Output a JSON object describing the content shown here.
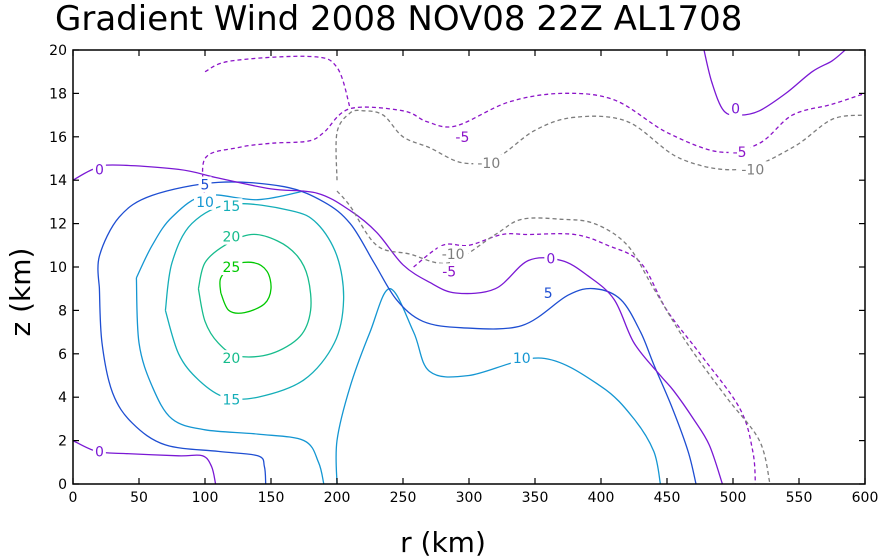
{
  "chart_data": {
    "type": "contour",
    "title": "Gradient Wind 2008 NOV08 22Z  AL1708",
    "xlabel": "r (km)",
    "ylabel": "z (km)",
    "xlim": [
      0,
      600
    ],
    "ylim": [
      0,
      20
    ],
    "x_ticks": [
      "0",
      "50",
      "100",
      "150",
      "200",
      "250",
      "300",
      "350",
      "400",
      "450",
      "500",
      "550",
      "600"
    ],
    "y_ticks": [
      "0",
      "2",
      "4",
      "6",
      "8",
      "10",
      "12",
      "14",
      "16",
      "18",
      "20"
    ],
    "contours": [
      {
        "level": "25",
        "color": "#00c800",
        "dashed": false,
        "points": [
          [
            112,
            8.8
          ],
          [
            118,
            8.0
          ],
          [
            130,
            7.9
          ],
          [
            145,
            8.3
          ],
          [
            150,
            9.0
          ],
          [
            147,
            9.8
          ],
          [
            137,
            10.2
          ],
          [
            122,
            10.1
          ],
          [
            112,
            9.5
          ],
          [
            112,
            8.8
          ]
        ],
        "labels": [
          [
            120,
            10.0
          ]
        ]
      },
      {
        "level": "20",
        "color": "#16bc8c",
        "dashed": false,
        "points": [
          [
            95,
            9.0
          ],
          [
            100,
            7.5
          ],
          [
            110,
            6.5
          ],
          [
            125,
            5.9
          ],
          [
            150,
            6.0
          ],
          [
            172,
            6.8
          ],
          [
            180,
            8.0
          ],
          [
            178,
            9.5
          ],
          [
            170,
            10.5
          ],
          [
            155,
            11.2
          ],
          [
            135,
            11.5
          ],
          [
            115,
            11.0
          ],
          [
            100,
            10.2
          ],
          [
            95,
            9.0
          ]
        ],
        "labels": [
          [
            120,
            11.4
          ],
          [
            120,
            5.8
          ]
        ]
      },
      {
        "level": "15",
        "color": "#14aeb8",
        "dashed": false,
        "points": [
          [
            70,
            8.0
          ],
          [
            80,
            6.0
          ],
          [
            95,
            4.8
          ],
          [
            115,
            4.0
          ],
          [
            140,
            4.0
          ],
          [
            175,
            4.8
          ],
          [
            198,
            6.5
          ],
          [
            205,
            8.5
          ],
          [
            200,
            10.5
          ],
          [
            185,
            12.0
          ],
          [
            165,
            12.6
          ],
          [
            120,
            12.9
          ],
          [
            90,
            12.0
          ],
          [
            75,
            10.2
          ],
          [
            70,
            8.0
          ]
        ],
        "labels": [
          [
            120,
            12.8
          ],
          [
            120,
            3.9
          ]
        ]
      },
      {
        "level": "10",
        "color": "#1496d2",
        "dashed": false,
        "points": [
          [
            48,
            9.5
          ],
          [
            50,
            6.5
          ],
          [
            60,
            4.5
          ],
          [
            75,
            3.0
          ],
          [
            100,
            2.5
          ],
          [
            140,
            2.3
          ],
          [
            175,
            2.0
          ],
          [
            186,
            1.0
          ],
          [
            190,
            0
          ],
          [
            null,
            null
          ],
          [
            200,
            0
          ],
          [
            200,
            2.0
          ],
          [
            210,
            4.5
          ],
          [
            225,
            7.0
          ],
          [
            240,
            9.0
          ],
          [
            258,
            7.0
          ],
          [
            270,
            5.2
          ],
          [
            300,
            5.0
          ],
          [
            355,
            5.8
          ],
          [
            400,
            4.5
          ],
          [
            425,
            3.0
          ],
          [
            440,
            1.5
          ],
          [
            445,
            0
          ],
          [
            null,
            null
          ],
          [
            175,
            13.5
          ],
          [
            140,
            13.1
          ],
          [
            100,
            13.3
          ],
          [
            75,
            12.3
          ],
          [
            60,
            11.0
          ],
          [
            48,
            9.5
          ]
        ],
        "labels": [
          [
            100,
            13.0
          ],
          [
            340,
            5.8
          ]
        ]
      },
      {
        "level": "5",
        "color": "#1e4ed2",
        "dashed": false,
        "points": [
          [
            20,
            9.0
          ],
          [
            22,
            6.5
          ],
          [
            30,
            4.2
          ],
          [
            45,
            2.8
          ],
          [
            70,
            1.8
          ],
          [
            110,
            1.5
          ],
          [
            140,
            1.3
          ],
          [
            145,
            0.8
          ],
          [
            146,
            0
          ],
          [
            null,
            null
          ],
          [
            472,
            0
          ],
          [
            466,
            1.5
          ],
          [
            454,
            3.5
          ],
          [
            440,
            5.5
          ],
          [
            430,
            7.0
          ],
          [
            415,
            8.5
          ],
          [
            395,
            9.0
          ],
          [
            375,
            8.7
          ],
          [
            340,
            7.3
          ],
          [
            295,
            7.2
          ],
          [
            265,
            7.5
          ],
          [
            245,
            8.5
          ],
          [
            228,
            10.2
          ],
          [
            210,
            12.0
          ],
          [
            190,
            13.0
          ],
          [
            160,
            13.7
          ],
          [
            110,
            13.9
          ],
          [
            60,
            13.3
          ],
          [
            35,
            12.3
          ],
          [
            20,
            10.5
          ],
          [
            20,
            9.0
          ]
        ],
        "labels": [
          [
            100,
            13.8
          ],
          [
            360,
            8.8
          ]
        ]
      },
      {
        "level": "0",
        "color": "#7a18d4",
        "dashed": false,
        "points": [
          [
            0,
            14.0
          ],
          [
            15,
            14.5
          ],
          [
            30,
            14.7
          ],
          [
            80,
            14.5
          ],
          [
            110,
            14.1
          ],
          [
            150,
            13.6
          ],
          [
            185,
            13.4
          ],
          [
            210,
            12.6
          ],
          [
            230,
            11.6
          ],
          [
            250,
            10.1
          ],
          [
            270,
            9.3
          ],
          [
            290,
            8.8
          ],
          [
            320,
            9.0
          ],
          [
            345,
            10.3
          ],
          [
            370,
            10.3
          ],
          [
            390,
            9.6
          ],
          [
            410,
            8.5
          ],
          [
            425,
            6.5
          ],
          [
            445,
            5.0
          ],
          [
            455,
            4.3
          ],
          [
            470,
            3.0
          ],
          [
            482,
            1.8
          ],
          [
            492,
            0
          ],
          [
            null,
            null
          ],
          [
            0,
            2.0
          ],
          [
            18,
            1.5
          ],
          [
            40,
            1.4
          ],
          [
            80,
            1.3
          ],
          [
            98,
            1.3
          ],
          [
            105,
            0.8
          ],
          [
            108,
            0
          ],
          [
            null,
            null
          ],
          [
            478,
            20
          ],
          [
            484,
            18.5
          ],
          [
            493,
            17.2
          ],
          [
            505,
            17.0
          ],
          [
            520,
            17.2
          ],
          [
            540,
            18.0
          ],
          [
            560,
            19.0
          ],
          [
            575,
            19.5
          ],
          [
            585,
            20
          ]
        ],
        "labels": [
          [
            20,
            14.5
          ],
          [
            20,
            1.5
          ],
          [
            362,
            10.4
          ],
          [
            502,
            17.3
          ]
        ]
      },
      {
        "level": "-5",
        "color": "#8c14c8",
        "dashed": true,
        "points": [
          [
            100,
            13.1
          ],
          [
            100,
            15.0
          ],
          [
            125,
            15.5
          ],
          [
            150,
            15.7
          ],
          [
            178,
            15.8
          ],
          [
            190,
            16.2
          ],
          [
            210,
            17.3
          ],
          [
            250,
            17.2
          ],
          [
            268,
            16.7
          ],
          [
            290,
            16.5
          ],
          [
            330,
            17.6
          ],
          [
            370,
            18.0
          ],
          [
            410,
            17.7
          ],
          [
            450,
            16.2
          ],
          [
            490,
            15.3
          ],
          [
            520,
            15.7
          ],
          [
            545,
            17.0
          ],
          [
            575,
            17.5
          ],
          [
            600,
            18.0
          ],
          [
            null,
            null
          ],
          [
            100,
            19.0
          ],
          [
            120,
            19.5
          ],
          [
            180,
            19.7
          ],
          [
            200,
            19.2
          ],
          [
            210,
            17.3
          ],
          [
            null,
            null
          ],
          [
            258,
            10.0
          ],
          [
            280,
            11.0
          ],
          [
            300,
            11.0
          ],
          [
            325,
            11.5
          ],
          [
            345,
            11.5
          ],
          [
            380,
            11.5
          ],
          [
            405,
            11.0
          ],
          [
            430,
            10.2
          ],
          [
            450,
            8.0
          ],
          [
            475,
            6.0
          ],
          [
            505,
            3.5
          ],
          [
            515,
            1.5
          ],
          [
            517,
            0
          ]
        ],
        "labels": [
          [
            295,
            16.0
          ],
          [
            505,
            15.3
          ],
          [
            285,
            9.8
          ]
        ]
      },
      {
        "level": "-10",
        "color": "#7d7d7d",
        "dashed": true,
        "points": [
          [
            200,
            14.0
          ],
          [
            200,
            16.2
          ],
          [
            210,
            17.1
          ],
          [
            220,
            17.2
          ],
          [
            235,
            17.0
          ],
          [
            250,
            16.0
          ],
          [
            270,
            15.5
          ],
          [
            295,
            14.8
          ],
          [
            320,
            15.0
          ],
          [
            350,
            16.3
          ],
          [
            380,
            16.9
          ],
          [
            420,
            16.7
          ],
          [
            460,
            15.0
          ],
          [
            505,
            14.5
          ],
          [
            545,
            15.5
          ],
          [
            575,
            16.8
          ],
          [
            600,
            17.0
          ],
          [
            null,
            null
          ],
          [
            200,
            13.5
          ],
          [
            210,
            12.8
          ],
          [
            230,
            11.0
          ],
          [
            255,
            10.6
          ],
          [
            285,
            10.2
          ],
          [
            320,
            11.5
          ],
          [
            340,
            12.2
          ],
          [
            370,
            12.2
          ],
          [
            395,
            12.0
          ],
          [
            420,
            11.0
          ],
          [
            440,
            9.0
          ],
          [
            465,
            6.5
          ],
          [
            495,
            4.0
          ],
          [
            520,
            2.0
          ],
          [
            528,
            0
          ]
        ],
        "labels": [
          [
            315,
            14.8
          ],
          [
            515,
            14.5
          ],
          [
            288,
            10.6
          ]
        ]
      }
    ]
  }
}
